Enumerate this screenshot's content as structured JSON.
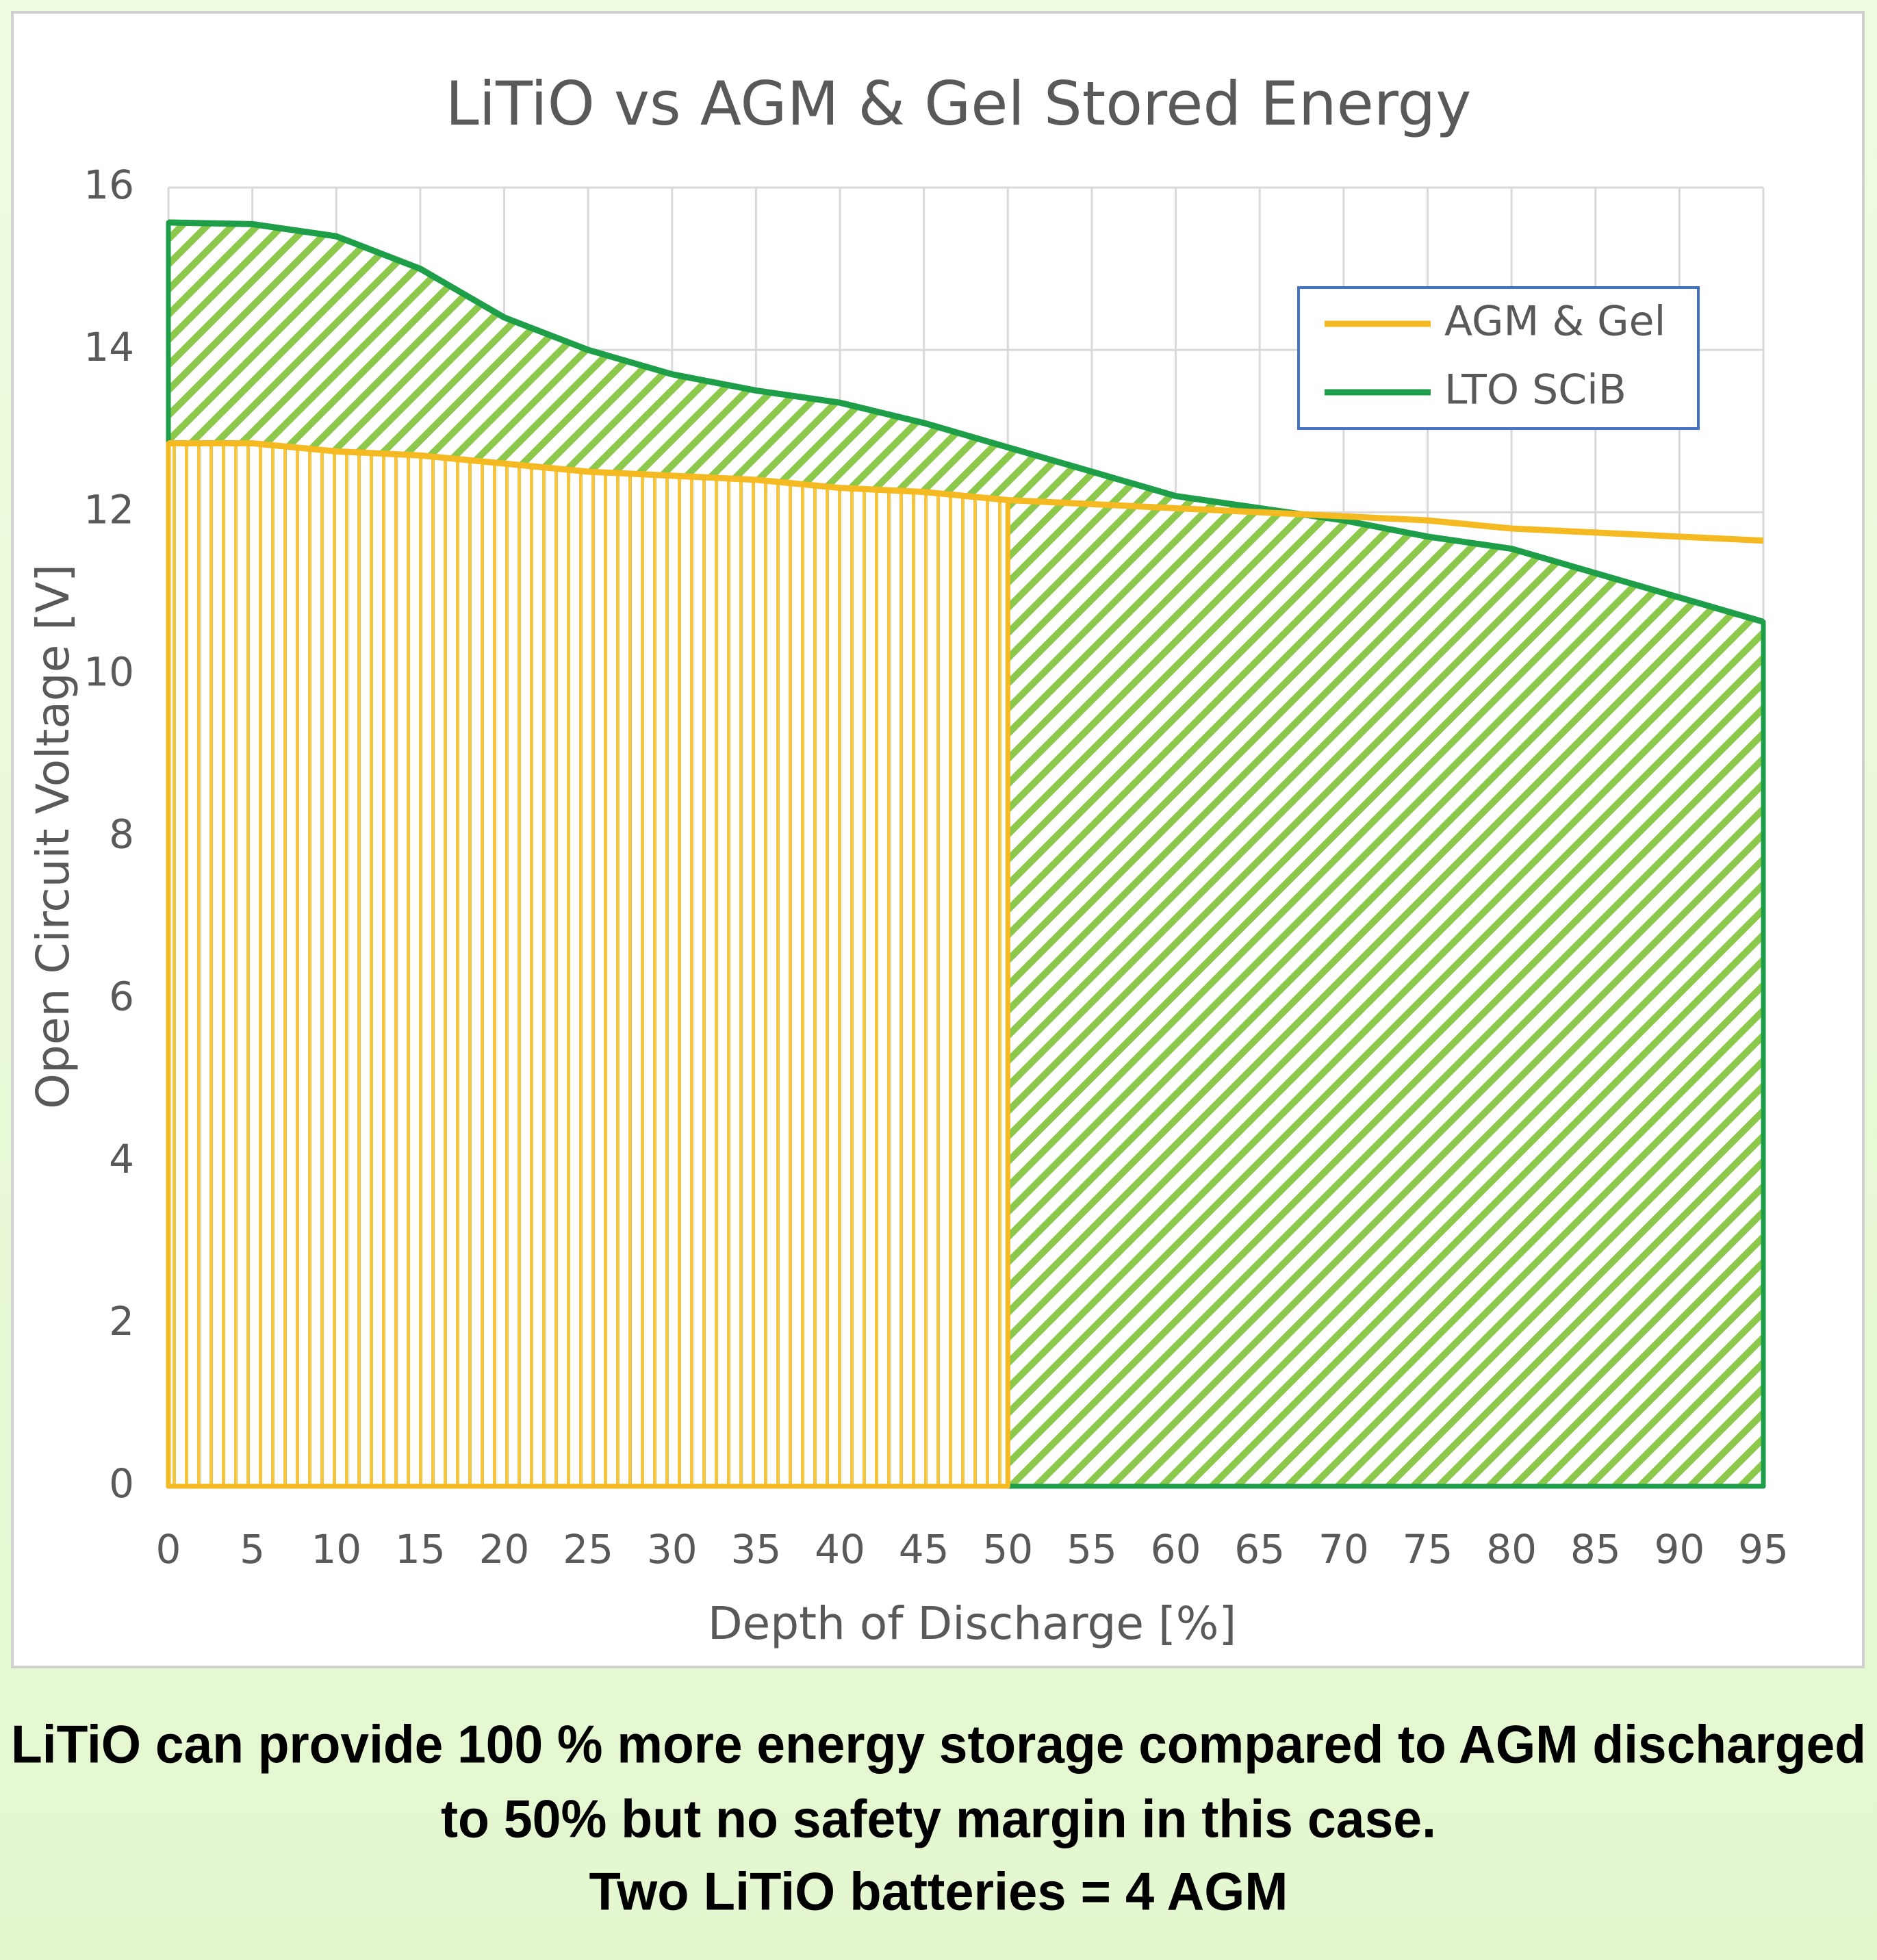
{
  "chart_data": {
    "type": "area-line",
    "title": "LiTiO vs AGM & Gel Stored Energy",
    "x_label": "Depth of Discharge [%]",
    "y_label": "Open Circuit Voltage [V]",
    "x": [
      0,
      5,
      10,
      15,
      20,
      25,
      30,
      35,
      40,
      45,
      50,
      55,
      60,
      65,
      70,
      75,
      80,
      85,
      90,
      95
    ],
    "series": [
      {
        "name": "AGM & Gel",
        "color": "#f5b921",
        "fill_until": 50,
        "values": [
          12.85,
          12.85,
          12.75,
          12.7,
          12.6,
          12.5,
          12.45,
          12.4,
          12.3,
          12.25,
          12.15,
          12.1,
          12.05,
          12.0,
          11.95,
          11.9,
          11.8,
          11.75,
          11.7,
          11.65
        ]
      },
      {
        "name": "LTO SCiB",
        "color": "#1e9e48",
        "fill_until": 95,
        "values": [
          15.57,
          15.55,
          15.4,
          15.0,
          14.4,
          14.0,
          13.7,
          13.5,
          13.35,
          13.1,
          12.8,
          12.5,
          12.2,
          12.05,
          11.9,
          11.7,
          11.55,
          11.25,
          10.95,
          10.65
        ]
      }
    ],
    "xlim": [
      0,
      95
    ],
    "xticks": [
      0,
      5,
      10,
      15,
      20,
      25,
      30,
      35,
      40,
      45,
      50,
      55,
      60,
      65,
      70,
      75,
      80,
      85,
      90,
      95
    ],
    "ylim": [
      0,
      16
    ],
    "yticks": [
      0,
      2,
      4,
      6,
      8,
      10,
      12,
      14,
      16
    ],
    "grid": true,
    "legend": "upper right"
  },
  "caption": [
    "LiTiO can provide 100 % more energy storage compared to AGM discharged",
    "to 50% but no safety margin in this case.",
    "Two LiTiO batteries = 4 AGM"
  ]
}
